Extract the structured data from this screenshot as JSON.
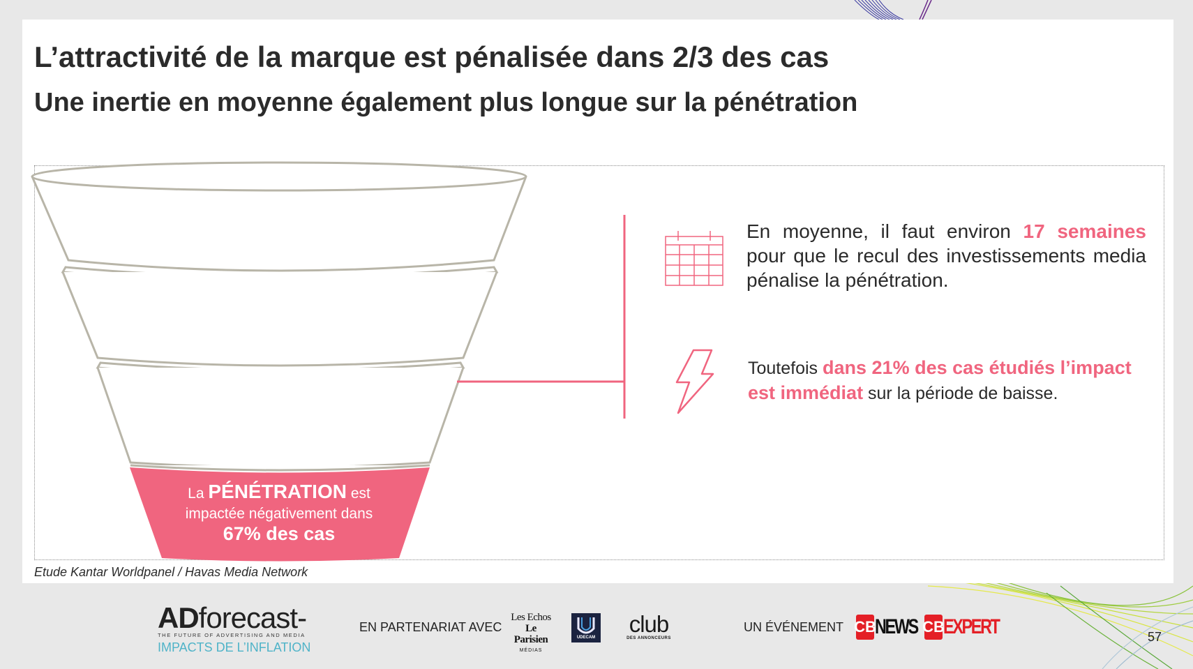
{
  "header": {
    "title": "L’attractivité de la marque est pénalisée dans 2/3 des cas",
    "subtitle": "Une inertie en moyenne également plus longue sur la pénétration"
  },
  "funnel": {
    "bottom_label": {
      "prefix": "La",
      "highlight": "PÉNÉTRATION",
      "suffix": "est",
      "line2": "impactée négativement dans",
      "line3": "67% des cas"
    }
  },
  "insights": {
    "first": {
      "icon": "calendar-icon",
      "before": "En moyenne, il faut environ",
      "highlight": "17 semaines",
      "after": "pour que le recul des investissements media pénalise la pénétration."
    },
    "second": {
      "icon": "lightning-icon",
      "before": "Toutefois",
      "highlight": "dans 21% des cas étudiés l’impact est immédiat",
      "after": "sur la période de baisse."
    }
  },
  "source": "Etude Kantar Worldpanel / Havas Media Network",
  "footer": {
    "ad_forecast": {
      "brand_a": "AD",
      "brand_b": "forecast-",
      "tagline": "THE FUTURE OF ADVERTISING AND MEDIA",
      "edition": "IMPACTS DE L’INFLATION"
    },
    "partner_label": "EN PARTENARIAT AVEC",
    "partners": {
      "lesechos_1": "Les Echos",
      "lesechos_2": "Le Parisien",
      "lesechos_3": "MÉDIAS",
      "udecam": "UDECAM",
      "club_1": "club",
      "club_2": "DES ANNONCEURS"
    },
    "event_label": "UN ÉVÉNEMENT",
    "organizers": {
      "cb_badge": "CB",
      "cbnews": "NEWS",
      "cbexpert": "EXPERT"
    },
    "page_number": "57"
  },
  "colors": {
    "accent": "#f0657f",
    "funnel_stroke": "#b8b5a8",
    "text": "#2a2a2a"
  }
}
